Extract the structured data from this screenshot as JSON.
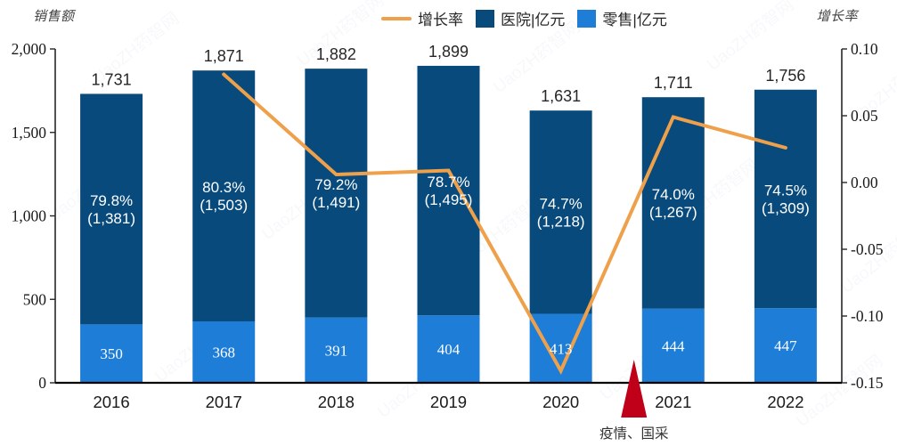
{
  "page": {
    "background": "#ffffff"
  },
  "left_title": "销售额",
  "right_title": "增长率",
  "legend": [
    {
      "label": "增长率",
      "swatch": "line",
      "color": "#efa04b"
    },
    {
      "label": "医院|亿元",
      "swatch": "square",
      "color": "#084a7c"
    },
    {
      "label": "零售|亿元",
      "swatch": "square",
      "color": "#1d7dd7"
    }
  ],
  "watermark": {
    "text": "UaoZH药智网",
    "color": "#4a6fa5"
  },
  "chart_data": {
    "type": "combo-stacked-bar-line",
    "categories": [
      "2016",
      "2017",
      "2018",
      "2019",
      "2020",
      "2021",
      "2022"
    ],
    "series": [
      {
        "name": "零售|亿元",
        "type": "bar",
        "stack": true,
        "color": "#1d7dd7",
        "values": [
          350,
          368,
          391,
          404,
          413,
          444,
          447
        ],
        "labels": [
          "350",
          "368",
          "391",
          "404",
          "413",
          "444",
          "447"
        ],
        "label_color": "#ffffff"
      },
      {
        "name": "医院|亿元",
        "type": "bar",
        "stack": true,
        "color": "#084a7c",
        "values": [
          1381,
          1503,
          1491,
          1495,
          1218,
          1267,
          1309
        ],
        "labels": [
          [
            "79.8%",
            "(1,381)"
          ],
          [
            "80.3%",
            "(1,503)"
          ],
          [
            "79.2%",
            "(1,491)"
          ],
          [
            "78.7%",
            "(1,495)"
          ],
          [
            "74.7%",
            "(1,218)"
          ],
          [
            "74.0%",
            "(1,267)"
          ],
          [
            "74.5%",
            "(1,309)"
          ]
        ],
        "label_color": "#ffffff"
      },
      {
        "name": "增长率",
        "type": "line",
        "axis": "right",
        "color": "#efa04b",
        "values": [
          null,
          0.081,
          0.006,
          0.009,
          -0.141,
          0.049,
          0.026
        ]
      }
    ],
    "totals": {
      "values": [
        1731,
        1871,
        1882,
        1899,
        1631,
        1711,
        1756
      ],
      "labels": [
        "1,731",
        "1,871",
        "1,882",
        "1,899",
        "1,631",
        "1,711",
        "1,756"
      ],
      "color": "#262626"
    },
    "left_axis": {
      "title": "销售额",
      "min": 0,
      "max": 2000,
      "ticks": [
        {
          "value": 2000,
          "label": "2,000"
        },
        {
          "value": 1500,
          "label": "1,500"
        },
        {
          "value": 1000,
          "label": "1,000"
        },
        {
          "value": 500,
          "label": "500"
        },
        {
          "value": 0,
          "label": "0"
        }
      ]
    },
    "right_axis": {
      "title": "增长率",
      "min": -0.15,
      "max": 0.1,
      "ticks": [
        {
          "value": 0.1,
          "label": "0.10"
        },
        {
          "value": 0.05,
          "label": "0.05"
        },
        {
          "value": 0.0,
          "label": "0.00"
        },
        {
          "value": -0.05,
          "label": "-0.05"
        },
        {
          "value": -0.1,
          "label": "-0.10"
        },
        {
          "value": -0.15,
          "label": "-0.15"
        }
      ]
    },
    "annotation": {
      "label": "疫情、国采",
      "between": [
        "2020",
        "2021"
      ],
      "color": "#c00018"
    },
    "grid": false,
    "legend_position": "top"
  }
}
